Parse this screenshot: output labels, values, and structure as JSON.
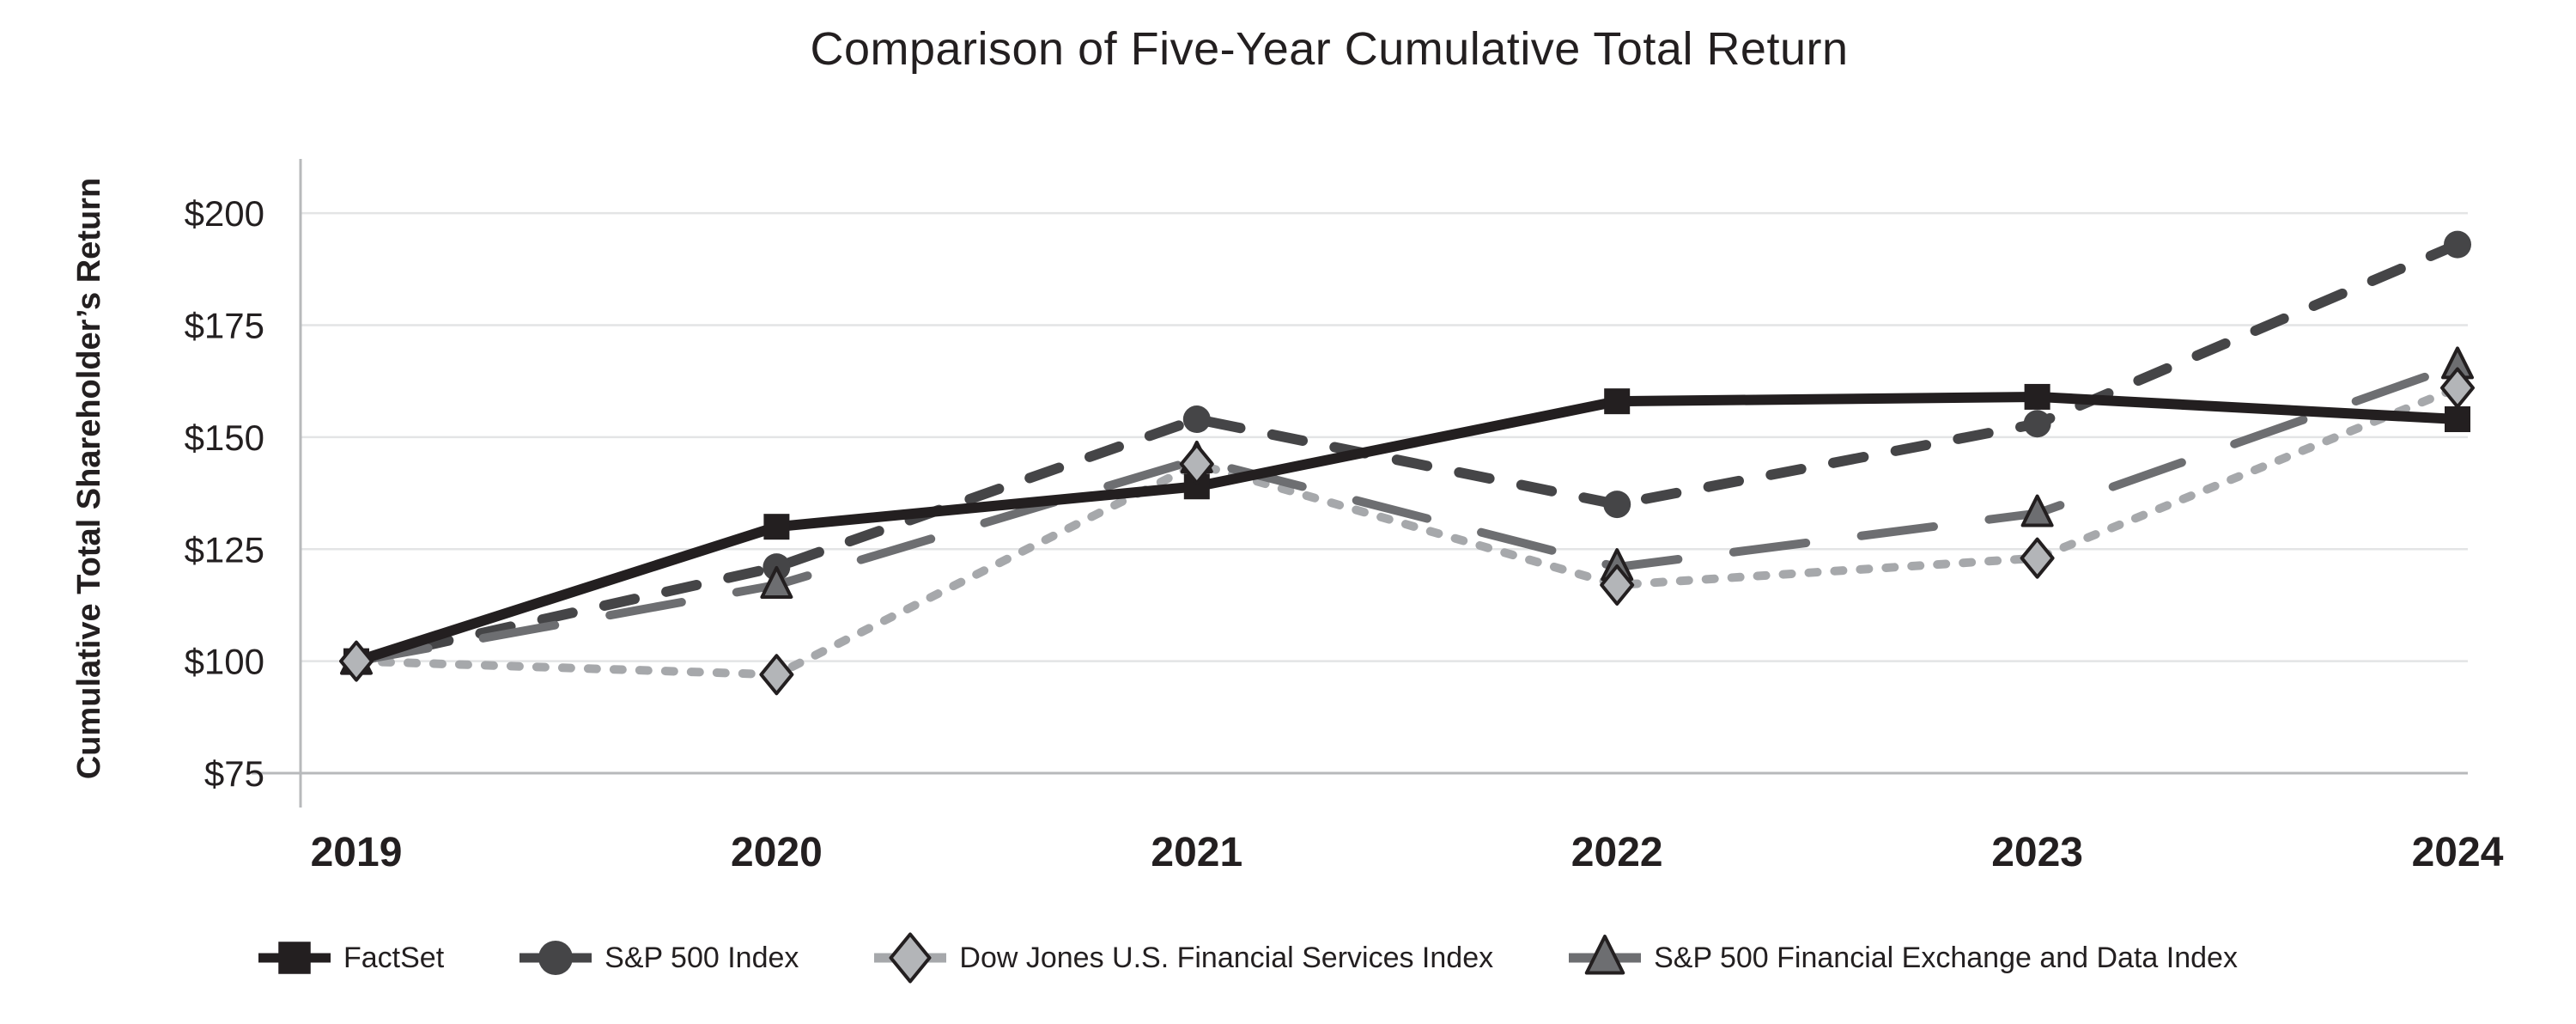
{
  "chart_data": {
    "type": "line",
    "title": "Comparison of Five-Year Cumulative Total Return",
    "xlabel": "",
    "ylabel": "Cumulative Total Shareholder’s Return",
    "categories": [
      "2019",
      "2020",
      "2021",
      "2022",
      "2023",
      "2024"
    ],
    "y_ticks": [
      {
        "value": 200,
        "label": "$200"
      },
      {
        "value": 175,
        "label": "$175"
      },
      {
        "value": 150,
        "label": "$150"
      },
      {
        "value": 125,
        "label": "$125"
      },
      {
        "value": 100,
        "label": "$100"
      },
      {
        "value": 75,
        "label": "$75"
      }
    ],
    "ylim": [
      75,
      212
    ],
    "grid": "horizontal",
    "legend_position": "bottom",
    "series": [
      {
        "name": "FactSet",
        "values": [
          100,
          130,
          139,
          158,
          159,
          154
        ],
        "color": "#231f20",
        "line_style": "solid",
        "marker": "square",
        "marker_fill": "#231f20"
      },
      {
        "name": "S&P 500 Index",
        "values": [
          100,
          121,
          154,
          135,
          153,
          193
        ],
        "color": "#454547",
        "line_style": "dashed",
        "marker": "circle",
        "marker_fill": "#454547"
      },
      {
        "name": "Dow Jones U.S. Financial Services Index",
        "values": [
          100,
          97,
          144,
          117,
          123,
          161
        ],
        "color": "#a6a8ab",
        "line_style": "dotted",
        "marker": "diamond",
        "marker_fill": "#b3b5b8"
      },
      {
        "name": "S&P 500 Financial Exchange and Data Index",
        "values": [
          100,
          117,
          145,
          121,
          133,
          166
        ],
        "color": "#6d6e71",
        "line_style": "long-dash",
        "marker": "triangle",
        "marker_fill": "#6d6e71"
      }
    ],
    "colors": {
      "grid": "#e3e4e5",
      "axis": "#b7b9bb",
      "text": "#231f20",
      "marker_outline": "#231f20",
      "background": "#ffffff"
    }
  }
}
